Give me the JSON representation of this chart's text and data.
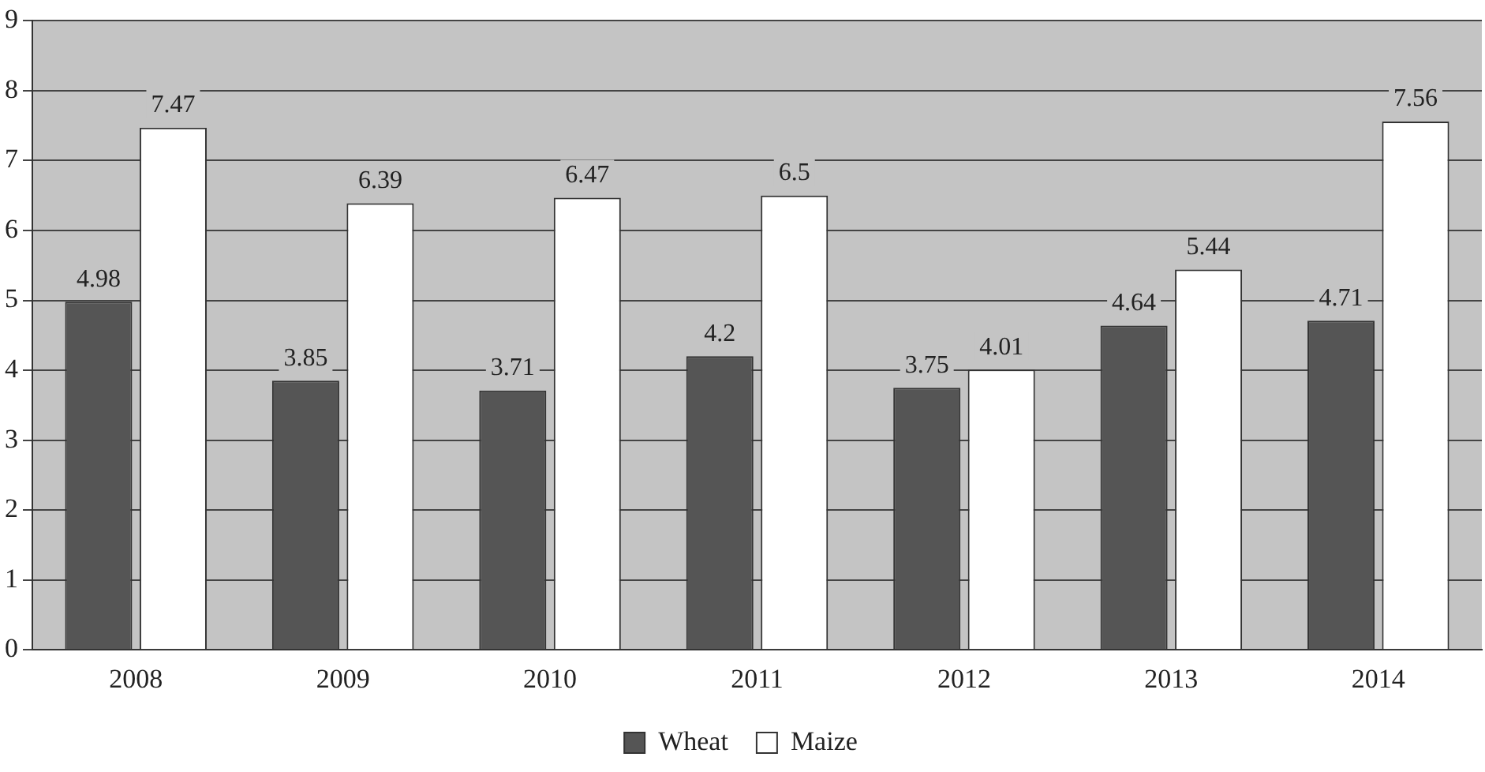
{
  "chart_data": {
    "type": "bar",
    "categories": [
      "2008",
      "2009",
      "2010",
      "2011",
      "2012",
      "2013",
      "2014"
    ],
    "series": [
      {
        "name": "Wheat",
        "color": "#555555",
        "values": [
          4.98,
          3.85,
          3.71,
          4.2,
          3.75,
          4.64,
          4.71
        ]
      },
      {
        "name": "Maize",
        "color": "#ffffff",
        "values": [
          7.47,
          6.39,
          6.47,
          6.5,
          4.01,
          5.44,
          7.56
        ]
      }
    ],
    "ylim": [
      0,
      9
    ],
    "yticks": [
      0,
      1,
      2,
      3,
      4,
      5,
      6,
      7,
      8,
      9
    ],
    "grid": "y",
    "legend": "bottom",
    "data_labels": true
  }
}
